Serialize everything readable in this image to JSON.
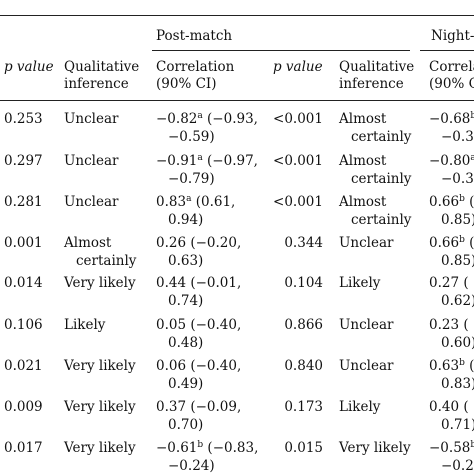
{
  "header": {
    "group_post_match": "Post-match",
    "group_night": "Night-t",
    "col_p": "p value",
    "col_inf_1": "Qualitative",
    "col_inf_2": "inference",
    "col_corr_1": "Correlation",
    "col_corr_2": "(90% CI)",
    "col_p2": "p value",
    "col_inf2_1": "Qualitative",
    "col_inf2_2": "inference",
    "col_night_1": "Correla",
    "col_night_2": "(90% C"
  },
  "rows": [
    {
      "p": "0.253",
      "inf_a": "Unclear",
      "inf_b": "",
      "corr_a": "−0.82",
      "corr_sup": "a",
      "corr_a2": " (−0.93,",
      "corr_b": "−0.59)",
      "p2": "<0.001",
      "inf2_a": "Almost",
      "inf2_b": "certainly",
      "n_a": "−0.68",
      "n_sup": "b",
      "n_a2": "",
      "n_b": "−0.3"
    },
    {
      "p": "0.297",
      "inf_a": "Unclear",
      "inf_b": "",
      "corr_a": "−0.91",
      "corr_sup": "a",
      "corr_a2": " (−0.97,",
      "corr_b": "−0.79)",
      "p2": "<0.001",
      "inf2_a": "Almost",
      "inf2_b": "certainly",
      "n_a": "−0.80",
      "n_sup": "a",
      "n_a2": "",
      "n_b": "−0.3"
    },
    {
      "p": "0.281",
      "inf_a": "Unclear",
      "inf_b": "",
      "corr_a": "0.83",
      "corr_sup": "a",
      "corr_a2": " (0.61,",
      "corr_b": "0.94)",
      "p2": "<0.001",
      "inf2_a": "Almost",
      "inf2_b": "certainly",
      "n_a": "0.66",
      "n_sup": "b",
      "n_a2": " (",
      "n_b": "0.85)"
    },
    {
      "p": "0.001",
      "inf_a": "Almost",
      "inf_b": "certainly",
      "corr_a": "0.26 (−0.20,",
      "corr_sup": "",
      "corr_a2": "",
      "corr_b": "0.63)",
      "p2": "0.344",
      "inf2_a": "Unclear",
      "inf2_b": "",
      "n_a": "0.66",
      "n_sup": "b",
      "n_a2": " (",
      "n_b": "0.85)"
    },
    {
      "p": "0.014",
      "inf_a": "Very likely",
      "inf_b": "",
      "corr_a": "0.44 (−0.01,",
      "corr_sup": "",
      "corr_a2": "",
      "corr_b": "0.74)",
      "p2": "0.104",
      "inf2_a": "Likely",
      "inf2_b": "",
      "n_a": "0.27 (",
      "n_sup": "",
      "n_a2": "",
      "n_b": "0.62)"
    },
    {
      "p": "0.106",
      "inf_a": "Likely",
      "inf_b": "",
      "corr_a": "0.05 (−0.40,",
      "corr_sup": "",
      "corr_a2": "",
      "corr_b": "0.48)",
      "p2": "0.866",
      "inf2_a": "Unclear",
      "inf2_b": "",
      "n_a": "0.23 (",
      "n_sup": "",
      "n_a2": "",
      "n_b": "0.60)"
    },
    {
      "p": "0.021",
      "inf_a": "Very likely",
      "inf_b": "",
      "corr_a": "0.06 (−0.40,",
      "corr_sup": "",
      "corr_a2": "",
      "corr_b": "0.49)",
      "p2": "0.840",
      "inf2_a": "Unclear",
      "inf2_b": "",
      "n_a": "0.63",
      "n_sup": "b",
      "n_a2": " (",
      "n_b": "0.83)"
    },
    {
      "p": "0.009",
      "inf_a": "Very likely",
      "inf_b": "",
      "corr_a": "0.37 (−0.09,",
      "corr_sup": "",
      "corr_a2": "",
      "corr_b": "0.70)",
      "p2": "0.173",
      "inf2_a": "Likely",
      "inf2_b": "",
      "n_a": "0.40 (",
      "n_sup": "",
      "n_a2": "",
      "n_b": "0.71)"
    },
    {
      "p": "0.017",
      "inf_a": "Very likely",
      "inf_b": "",
      "corr_a": "−0.61",
      "corr_sup": "b",
      "corr_a2": " (−0.83,",
      "corr_b": "−0.24)",
      "p2": "0.015",
      "inf2_a": "Very likely",
      "inf2_b": "",
      "n_a": "−0.58",
      "n_sup": "b",
      "n_a2": "",
      "n_b": "−0.2"
    }
  ]
}
